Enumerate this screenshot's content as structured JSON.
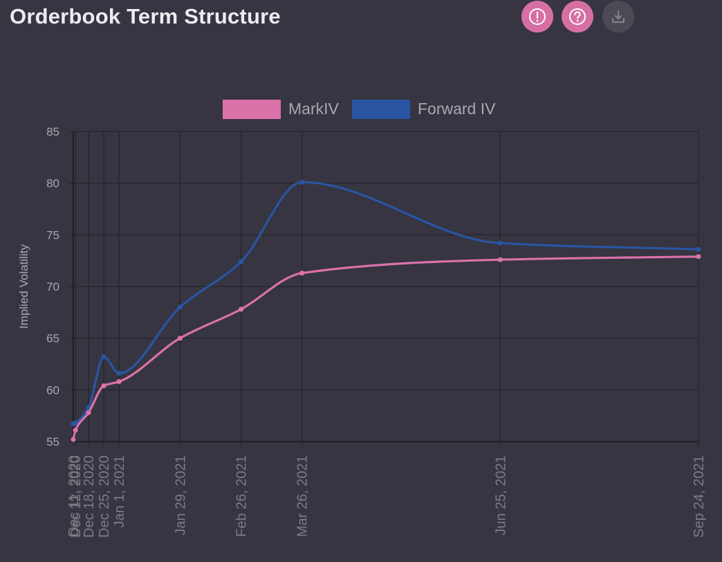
{
  "title": "Orderbook Term Structure",
  "toolbar": {
    "info_icon": "exclamation-circle-icon",
    "help_icon": "question-circle-icon",
    "download_icon": "download-icon"
  },
  "colors": {
    "background": "#363541",
    "accent": "#d76fa4",
    "mark_iv": "#dc72aa",
    "forward_iv": "#2a55a2",
    "grid": "#25242c",
    "tick_text": "#a9a8b2"
  },
  "chart_data": {
    "type": "line",
    "title": "",
    "xlabel": "",
    "ylabel": "Implied Volatility",
    "ylim": [
      55,
      85
    ],
    "yticks": [
      55,
      60,
      65,
      70,
      75,
      80,
      85
    ],
    "x_day_offsets": [
      0,
      1,
      7,
      14,
      21,
      49,
      77,
      105,
      196,
      287
    ],
    "x_labels": [
      "Dec 11, 2020",
      "Dec 12, 2020",
      "Dec 18, 2020",
      "Dec 25, 2020",
      "Jan 1, 2021",
      "Jan 29, 2021",
      "Feb 26, 2021",
      "Mar 26, 2021",
      "Jun 25, 2021",
      "Sep 24, 2021"
    ],
    "legend_position": "top-center",
    "series": [
      {
        "name": "MarkIV",
        "color": "#dc72aa",
        "values": [
          55.2,
          56.1,
          57.8,
          60.4,
          60.8,
          65.0,
          67.8,
          71.3,
          72.6,
          72.9
        ]
      },
      {
        "name": "Forward IV",
        "color": "#2a55a2",
        "values": [
          56.7,
          56.8,
          58.3,
          63.2,
          61.6,
          68.0,
          72.4,
          80.1,
          74.2,
          73.6
        ]
      }
    ]
  }
}
